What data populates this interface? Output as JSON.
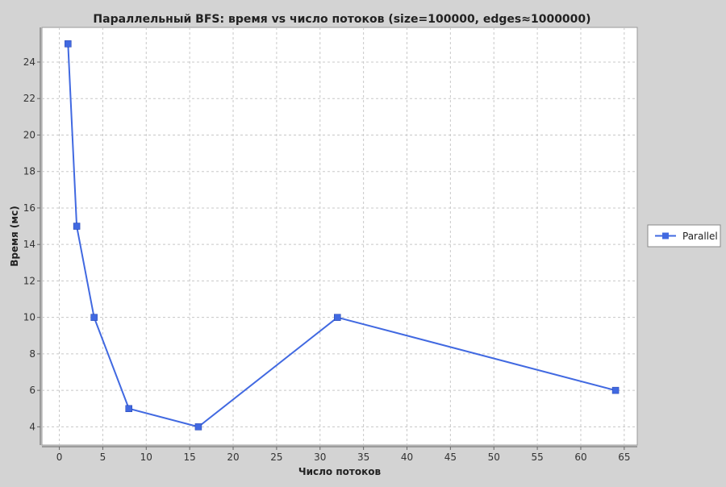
{
  "chart_data": {
    "type": "line",
    "title": "Параллельный BFS: время vs число потоков (size=100000, edges≈1000000)",
    "xlabel": "Число потоков",
    "ylabel": "Время (мс)",
    "xlim": [
      -2,
      66.5
    ],
    "ylim": [
      3.0,
      25.9
    ],
    "xticks": [
      0,
      5,
      10,
      15,
      20,
      25,
      30,
      35,
      40,
      45,
      50,
      55,
      60,
      65
    ],
    "yticks": [
      4,
      6,
      8,
      10,
      12,
      14,
      16,
      18,
      20,
      22,
      24
    ],
    "grid": true,
    "legend_position": "right",
    "series": [
      {
        "name": "Parallel",
        "color": "#4169e1",
        "marker": "square",
        "x": [
          1,
          2,
          4,
          8,
          16,
          32,
          64
        ],
        "y": [
          25,
          15,
          10,
          5,
          4,
          10,
          6
        ]
      }
    ]
  }
}
